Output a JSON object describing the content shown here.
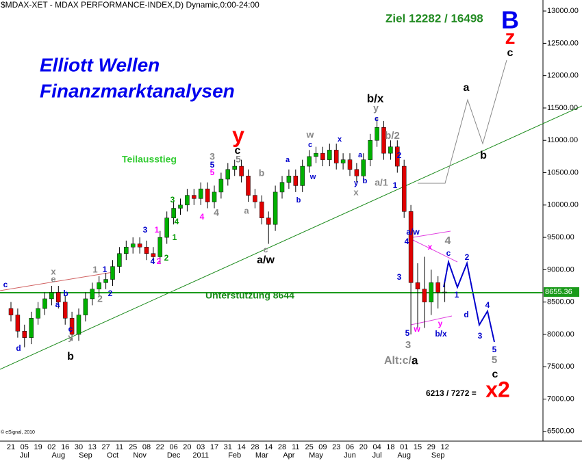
{
  "chart_data": {
    "type": "candlestick",
    "title": "$MDAX-XET - MDAX PERFORMANCE-INDEX,D) Dynamic,0:00-24:00",
    "copyright": "© eSignal, 2010",
    "categories": [
      "21",
      null,
      "05",
      null,
      "19",
      null,
      "02",
      null,
      "16",
      null,
      "30",
      null,
      "13",
      null,
      "27",
      null,
      "11",
      null,
      "25",
      null,
      "08",
      null,
      "22",
      null,
      "06",
      null,
      "20",
      null,
      "03",
      null,
      "17",
      null,
      "31",
      null,
      "14",
      null,
      "28",
      null,
      "14",
      null,
      "28",
      null,
      "11",
      null,
      "25",
      null,
      "09",
      null,
      "23",
      null,
      "06",
      null,
      "20",
      null,
      "04",
      null,
      "18",
      null,
      "01",
      null,
      "15",
      null,
      "29",
      null,
      "12"
    ],
    "months": [
      null,
      null,
      "Jul",
      null,
      null,
      null,
      null,
      "Aug",
      null,
      null,
      null,
      "Sep",
      null,
      null,
      null,
      "Oct",
      null,
      null,
      null,
      "Nov",
      null,
      null,
      null,
      null,
      "Dec",
      null,
      null,
      null,
      "2011",
      null,
      null,
      null,
      null,
      "Feb",
      null,
      null,
      null,
      "Mar",
      null,
      null,
      null,
      "Apr",
      null,
      null,
      null,
      "May",
      null,
      null,
      null,
      null,
      "Jun",
      null,
      null,
      null,
      "Jul",
      null,
      null,
      null,
      "Aug",
      null,
      null,
      null,
      null,
      "Sep",
      null
    ],
    "candles": {
      "open": [
        8400,
        8300,
        8050,
        7950,
        8250,
        8400,
        8550,
        8650,
        8500,
        8250,
        8000,
        8300,
        8550,
        8700,
        8800,
        8850,
        9050,
        9250,
        9350,
        9400,
        9350,
        9250,
        9200,
        9500,
        9800,
        9950,
        10000,
        10150,
        10100,
        10250,
        10050,
        10200,
        10400,
        10550,
        10600,
        10450,
        10150,
        10050,
        9800,
        9700,
        10200,
        10350,
        10450,
        10300,
        10600,
        10750,
        10800,
        10700,
        10850,
        10650,
        10700,
        10550,
        10450,
        10700,
        11000,
        11200,
        10800,
        10900,
        10600,
        9900,
        8800,
        8700,
        8500,
        8800,
        8650
      ],
      "high": [
        8500,
        8400,
        8150,
        8350,
        8500,
        8650,
        8750,
        8750,
        8600,
        8350,
        8400,
        8650,
        8800,
        8900,
        8950,
        9150,
        9350,
        9450,
        9500,
        9500,
        9450,
        9350,
        9600,
        9900,
        10050,
        10100,
        10250,
        10250,
        10350,
        10350,
        10300,
        10500,
        10650,
        10700,
        10700,
        10550,
        10250,
        10150,
        9900,
        10300,
        10450,
        10550,
        10550,
        10700,
        10850,
        10900,
        10900,
        10950,
        10950,
        10800,
        10800,
        10650,
        10800,
        11100,
        11350,
        11300,
        11000,
        11000,
        10700,
        10000,
        9100,
        9200,
        9000,
        8900,
        8800
      ],
      "low": [
        8200,
        7950,
        7800,
        7850,
        8150,
        8300,
        8450,
        8400,
        8150,
        7900,
        7900,
        8200,
        8450,
        8600,
        8700,
        8750,
        8950,
        9150,
        9250,
        9250,
        9150,
        9100,
        9100,
        9400,
        9700,
        9850,
        9900,
        10000,
        10000,
        9950,
        9950,
        10100,
        10300,
        10450,
        10350,
        10050,
        9950,
        9700,
        9400,
        9600,
        10100,
        10250,
        10200,
        10200,
        10500,
        10650,
        10600,
        10600,
        10550,
        10550,
        10450,
        10350,
        10350,
        10600,
        10900,
        10700,
        10700,
        10500,
        9800,
        8000,
        8100,
        8100,
        8300,
        8400,
        8500
      ],
      "close": [
        8300,
        8050,
        7950,
        8250,
        8400,
        8550,
        8650,
        8500,
        8250,
        8000,
        8300,
        8550,
        8700,
        8800,
        8850,
        9050,
        9250,
        9350,
        9400,
        9350,
        9250,
        9200,
        9500,
        9800,
        9950,
        10000,
        10150,
        10100,
        10250,
        10050,
        10200,
        10400,
        10550,
        10600,
        10450,
        10150,
        10050,
        9800,
        9700,
        10200,
        10350,
        10450,
        10300,
        10600,
        10750,
        10800,
        10700,
        10850,
        10650,
        10700,
        10550,
        10450,
        10700,
        11000,
        11200,
        10800,
        10900,
        10600,
        9900,
        8800,
        8700,
        8500,
        8800,
        8650,
        8655
      ]
    },
    "up_color": "#00b000",
    "down_color": "#e00000",
    "last_price": 8655.36,
    "support": 8644,
    "support_label": "Unterstützung 8644",
    "ylim": [
      6350,
      13170
    ],
    "yticks": [
      {
        "value": 6500,
        "label": "6500.00"
      },
      {
        "value": 7000,
        "label": "7000.00"
      },
      {
        "value": 7500,
        "label": "7500.00"
      },
      {
        "value": 8000,
        "label": "8000.00"
      },
      {
        "value": 8500,
        "label": "8500.00"
      },
      {
        "value": 9000,
        "label": "9000.00"
      },
      {
        "value": 9500,
        "label": "9500.00"
      },
      {
        "value": 10000,
        "label": "10000.00"
      },
      {
        "value": 10500,
        "label": "10500.00"
      },
      {
        "value": 11000,
        "label": "11000.00"
      },
      {
        "value": 11500,
        "label": "11500.00"
      },
      {
        "value": 12000,
        "label": "12000.00"
      },
      {
        "value": 12500,
        "label": "12500.00"
      },
      {
        "value": 13000,
        "label": "13000.00"
      }
    ],
    "annotations": [
      {
        "text": "Elliott Wellen",
        "color": "#0000ee"
      },
      {
        "text": "Finanzmarktanalysen",
        "color": "#0000ee"
      },
      {
        "text": "Ziel 12282 / 16498",
        "color": "#228b22"
      },
      {
        "text": "B",
        "color": "#0000ee"
      },
      {
        "text": "z",
        "color": "#ff0000"
      },
      {
        "text": "c",
        "color": "#000000"
      },
      {
        "text": "a",
        "color": "#000000"
      },
      {
        "text": "b",
        "color": "#000000"
      },
      {
        "text": "b/x",
        "color": "#000000"
      },
      {
        "text": "y",
        "color": "#888888"
      },
      {
        "text": "c",
        "color": "#0000cc"
      },
      {
        "text": "b/2",
        "color": "#888888"
      },
      {
        "text": "2",
        "color": "#0000cc"
      },
      {
        "text": "a/1",
        "color": "#888888"
      },
      {
        "text": "1",
        "color": "#0000cc"
      },
      {
        "text": "y",
        "color": "#ff0000"
      },
      {
        "text": "c",
        "color": "#000000"
      },
      {
        "text": "5",
        "color": "#888888"
      },
      {
        "text": "3",
        "color": "#888888"
      },
      {
        "text": "5",
        "color": "#0000cc"
      },
      {
        "text": "5",
        "color": "#ff00ff"
      },
      {
        "text": "Teilausstieg",
        "color": "#33cc33"
      },
      {
        "text": "3",
        "color": "#009900"
      },
      {
        "text": "4",
        "color": "#009900"
      },
      {
        "text": "4",
        "color": "#ff00ff"
      },
      {
        "text": "4",
        "color": "#888888"
      },
      {
        "text": "b",
        "color": "#888888"
      },
      {
        "text": "a",
        "color": "#888888"
      },
      {
        "text": "c",
        "color": "#888888"
      },
      {
        "text": "a/w",
        "color": "#000000"
      },
      {
        "text": "a",
        "color": "#0000cc"
      },
      {
        "text": "b",
        "color": "#0000cc"
      },
      {
        "text": "w",
        "color": "#888888"
      },
      {
        "text": "c",
        "color": "#0000cc"
      },
      {
        "text": "w",
        "color": "#0000cc"
      },
      {
        "text": "x",
        "color": "#0000cc"
      },
      {
        "text": "a/w",
        "color": "#0000cc"
      },
      {
        "text": "4",
        "color": "#0000cc"
      },
      {
        "text": "x",
        "color": "#ff00ff"
      },
      {
        "text": "4",
        "color": "#888888"
      },
      {
        "text": "c",
        "color": "#0000cc"
      },
      {
        "text": "2",
        "color": "#0000cc"
      },
      {
        "text": "3",
        "color": "#0000cc"
      },
      {
        "text": "1",
        "color": "#0000cc"
      },
      {
        "text": "d",
        "color": "#0000cc"
      },
      {
        "text": "4",
        "color": "#0000cc"
      },
      {
        "text": "3",
        "color": "#0000cc"
      },
      {
        "text": "5",
        "color": "#0000cc"
      },
      {
        "text": "5",
        "color": "#888888"
      },
      {
        "text": "c",
        "color": "#000000"
      },
      {
        "text": "5",
        "color": "#0000cc"
      },
      {
        "text": "3",
        "color": "#888888"
      },
      {
        "text": "w",
        "color": "#ff00ff"
      },
      {
        "text": "y",
        "color": "#ff00ff"
      },
      {
        "text": "b/x",
        "color": "#0000cc"
      },
      {
        "text": "Alt:c/",
        "color": "#888888"
      },
      {
        "text": "a",
        "color": "#000000"
      },
      {
        "text": "6213 / 7272 =",
        "color": "#000000"
      },
      {
        "text": "x2",
        "color": "#ff0000"
      },
      {
        "text": "d",
        "color": "#0000cc"
      },
      {
        "text": "c",
        "color": "#0000cc"
      },
      {
        "text": "y",
        "color": "#888888"
      },
      {
        "text": "b",
        "color": "#000000"
      },
      {
        "text": "a",
        "color": "#0000cc"
      },
      {
        "text": "b",
        "color": "#0000cc"
      },
      {
        "text": "x",
        "color": "#888888"
      },
      {
        "text": "e",
        "color": "#888888"
      },
      {
        "text": "c",
        "color": "#0000cc"
      },
      {
        "text": "1",
        "color": "#0000cc"
      },
      {
        "text": "1",
        "color": "#888888"
      },
      {
        "text": "2",
        "color": "#888888"
      },
      {
        "text": "2",
        "color": "#0000cc"
      },
      {
        "text": "3",
        "color": "#0000cc"
      },
      {
        "text": "1",
        "color": "#ff00ff"
      },
      {
        "text": "4",
        "color": "#0000cc"
      },
      {
        "text": "2",
        "color": "#ff00ff"
      },
      {
        "text": "2",
        "color": "#009900"
      },
      {
        "text": "1",
        "color": "#009900"
      },
      {
        "text": "b",
        "color": "#0000cc"
      },
      {
        "text": "y",
        "color": "#0000cc"
      },
      {
        "text": "x",
        "color": "#888888"
      },
      {
        "text": "a",
        "color": "#0000cc"
      }
    ]
  }
}
